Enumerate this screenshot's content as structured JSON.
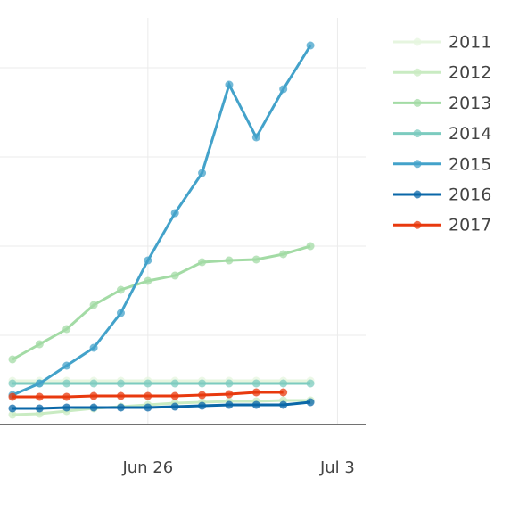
{
  "chart_data": {
    "type": "line",
    "x": [
      "Jun 21",
      "Jun 22",
      "Jun 23",
      "Jun 24",
      "Jun 25",
      "Jun 26",
      "Jun 27",
      "Jun 28",
      "Jun 29",
      "Jun 30",
      "Jul 1",
      "Jul 2"
    ],
    "xlim": [
      "Jun 20",
      "Jul 4"
    ],
    "xticks": [
      "Jun 26",
      "Jul 3"
    ],
    "ylim": [
      0,
      4.56
    ],
    "yticks": [
      1,
      2,
      3,
      4
    ],
    "grid": true,
    "legend": "right",
    "series": [
      {
        "name": "2011",
        "color": "#e6f5df",
        "values": [
          0.49,
          0.49,
          0.49,
          0.49,
          0.49,
          0.49,
          0.49,
          0.49,
          0.49,
          0.49,
          0.49,
          0.49
        ]
      },
      {
        "name": "2012",
        "color": "#c9ebc2",
        "values": [
          0.11,
          0.12,
          0.15,
          0.18,
          0.2,
          0.22,
          0.24,
          0.25,
          0.26,
          0.26,
          0.27,
          0.27
        ]
      },
      {
        "name": "2013",
        "color": "#a3dba5",
        "values": [
          0.73,
          0.9,
          1.07,
          1.34,
          1.51,
          1.61,
          1.67,
          1.82,
          1.84,
          1.85,
          1.91,
          2.0
        ]
      },
      {
        "name": "2014",
        "color": "#7ccbbf",
        "values": [
          0.46,
          0.46,
          0.46,
          0.46,
          0.46,
          0.46,
          0.46,
          0.46,
          0.46,
          0.46,
          0.46,
          0.46
        ]
      },
      {
        "name": "2015",
        "color": "#43a2ca",
        "values": [
          0.33,
          0.46,
          0.66,
          0.86,
          1.25,
          1.84,
          2.37,
          2.82,
          3.81,
          3.22,
          3.76,
          4.25
        ]
      },
      {
        "name": "2016",
        "color": "#0a67a8",
        "values": [
          0.18,
          0.18,
          0.19,
          0.19,
          0.19,
          0.19,
          0.2,
          0.21,
          0.22,
          0.22,
          0.22,
          0.25
        ]
      },
      {
        "name": "2017",
        "color": "#e8390e",
        "values": [
          0.31,
          0.31,
          0.31,
          0.32,
          0.32,
          0.32,
          0.32,
          0.33,
          0.34,
          0.36,
          0.36,
          null
        ]
      }
    ]
  }
}
